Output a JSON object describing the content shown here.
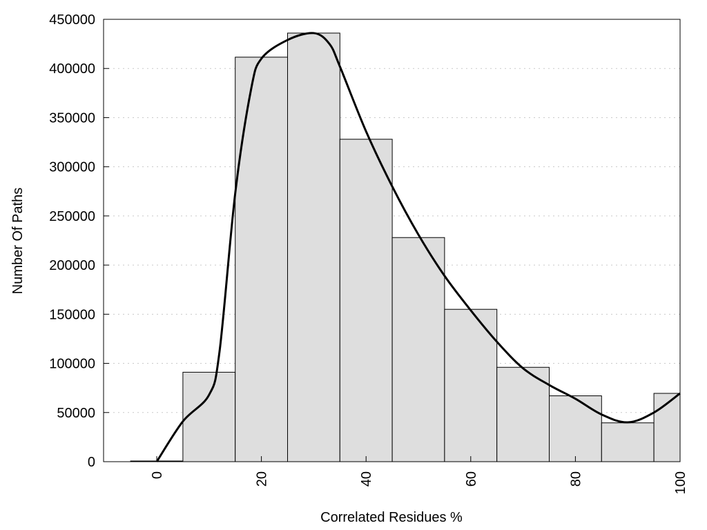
{
  "chart_data": {
    "type": "bar",
    "title": "",
    "xlabel": "Correlated Residues %",
    "ylabel": "Number Of Paths",
    "xlim": [
      -10,
      100
    ],
    "ylim": [
      0,
      450000
    ],
    "grid": "horizontal dotted",
    "bar_width": 10,
    "bar_color": "#dedede",
    "x_ticks": [
      0,
      20,
      40,
      60,
      80,
      100
    ],
    "y_ticks": [
      0,
      50000,
      100000,
      150000,
      200000,
      250000,
      300000,
      350000,
      400000,
      450000
    ],
    "bars": {
      "x": [
        0,
        10,
        20,
        30,
        40,
        50,
        60,
        70,
        80,
        90,
        100
      ],
      "values": [
        700,
        91000,
        411500,
        436000,
        328000,
        228000,
        155000,
        96000,
        67000,
        39500,
        69500
      ]
    },
    "curve": {
      "color": "#000000",
      "x": [
        0,
        5,
        10,
        12,
        15,
        18,
        20,
        25,
        30,
        33,
        35,
        40,
        45,
        50,
        55,
        60,
        65,
        70,
        75,
        80,
        85,
        90,
        95,
        100
      ],
      "y": [
        0,
        41000,
        68000,
        112000,
        273000,
        378000,
        410000,
        429000,
        436000,
        425000,
        402000,
        336000,
        280000,
        231000,
        189000,
        154000,
        122000,
        95000,
        78000,
        64000,
        48000,
        40000,
        50000,
        69500
      ]
    }
  }
}
